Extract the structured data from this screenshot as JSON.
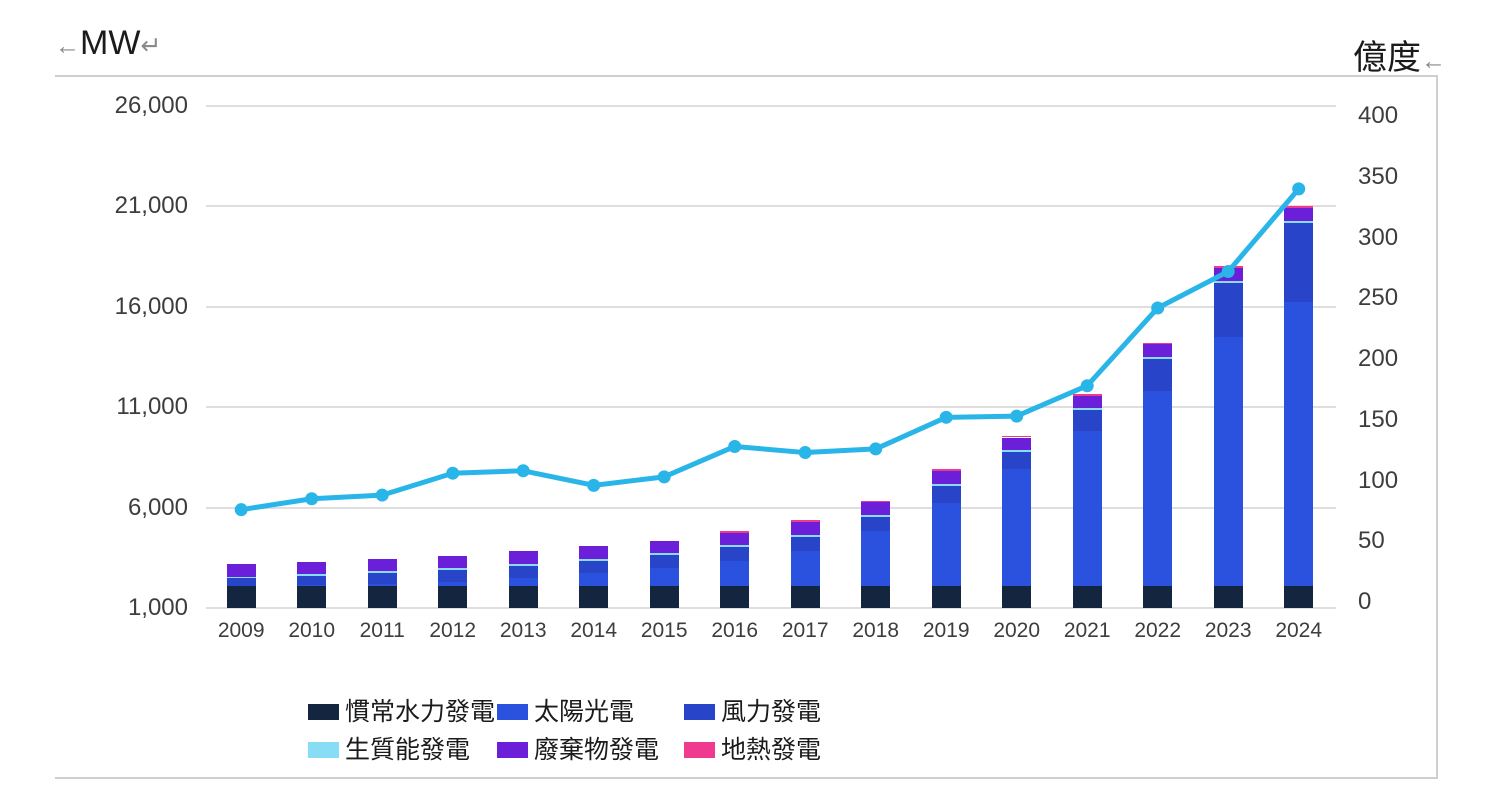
{
  "page": {
    "left_axis_unit": "MW",
    "right_axis_unit": "億度",
    "tab_mark": "←",
    "return_mark": "↵",
    "trailing_mark": "←"
  },
  "chart_data": {
    "type": "combo: stacked-bar (left axis, MW capacity) + line (right axis, 億度 generation)",
    "categories": [
      2009,
      2010,
      2011,
      2012,
      2013,
      2014,
      2015,
      2016,
      2017,
      2018,
      2019,
      2020,
      2021,
      2022,
      2023,
      2024
    ],
    "left_axis": {
      "unit": "MW",
      "min": 1000,
      "max": 26000,
      "ticks": [
        {
          "v": 26000,
          "label": "26,000"
        },
        {
          "v": 21000,
          "label": "21,000"
        },
        {
          "v": 16000,
          "label": "16,000"
        },
        {
          "v": 11000,
          "label": "11,000"
        },
        {
          "v": 6000,
          "label": "6,000"
        },
        {
          "v": 1000,
          "label": "1,000"
        }
      ],
      "grid": true
    },
    "right_axis": {
      "unit": "億度",
      "min": 0,
      "max": 400,
      "step": 50,
      "ticks": [
        400,
        350,
        300,
        250,
        200,
        150,
        100,
        50,
        0
      ]
    },
    "series": [
      {
        "name": "慣常水力發電",
        "color": "#142540",
        "values": [
          2089,
          2089,
          2089,
          2089,
          2089,
          2089,
          2089,
          2089,
          2089,
          2091,
          2091,
          2091,
          2091,
          2093,
          2094,
          2094
        ]
      },
      {
        "name": "太陽光電",
        "color": "#2B52DE",
        "values": [
          10,
          35,
          130,
          231,
          410,
          636,
          884,
          1245,
          1768,
          2738,
          4150,
          5817,
          7700,
          9724,
          12418,
          14169
        ]
      },
      {
        "name": "風力發電",
        "color": "#2845C9",
        "values": [
          375,
          476,
          523,
          571,
          614,
          637,
          647,
          682,
          692,
          704,
          845,
          854,
          1062,
          1581,
          2675,
          3904
        ]
      },
      {
        "name": "生質能發電",
        "color": "#87DDF6",
        "values": [
          95,
          95,
          95,
          95,
          95,
          95,
          100,
          100,
          100,
          100,
          100,
          100,
          100,
          105,
          105,
          110
        ]
      },
      {
        "name": "廢棄物發電",
        "color": "#6B1FD9",
        "values": [
          614,
          619,
          624,
          625,
          629,
          630,
          630,
          630,
          630,
          630,
          630,
          630,
          630,
          630,
          630,
          630
        ]
      },
      {
        "name": "地熱發電",
        "color": "#F03A8F",
        "values": [
          0,
          0,
          0,
          0,
          0,
          0,
          0,
          1,
          1,
          2,
          3,
          3,
          5,
          5,
          7,
          8
        ]
      }
    ],
    "line_series": {
      "label": "億度",
      "color": "#29B5E8",
      "values": [
        76,
        85,
        88,
        106,
        108,
        96,
        103,
        128,
        123,
        126,
        152,
        153,
        178,
        242,
        272,
        340
      ]
    },
    "legend_position": "bottom, 2 rows x 3 columns, in series order"
  },
  "colors": {
    "grid": "#dedede",
    "frame_border": "#cfcfcf",
    "tick_text": "#3d3d3d"
  }
}
